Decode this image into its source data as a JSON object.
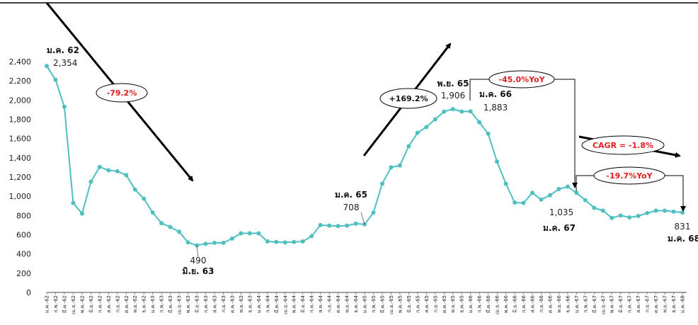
{
  "chart_data": {
    "type": "line",
    "title": "",
    "xlabel": "",
    "ylabel": "",
    "ylim": [
      0,
      2400
    ],
    "yticks": [
      0,
      200,
      400,
      600,
      800,
      1000,
      1200,
      1400,
      1600,
      1800,
      2000,
      2200,
      2400
    ],
    "ytick_labels": [
      "0",
      "200",
      "400",
      "600",
      "800",
      "1,000",
      "1,200",
      "1,400",
      "1,600",
      "1,800",
      "2,000",
      "2,200",
      "2,400"
    ],
    "grid": false,
    "legend": "none",
    "x": [
      "ม.ค.-62",
      "ก.พ.-62",
      "มี.ค.-62",
      "เม.ย.-62",
      "พ.ค.-62",
      "มิ.ย.-62",
      "ก.ค.-62",
      "ส.ค.-62",
      "ก.ย.-62",
      "ต.ค.-62",
      "พ.ย.-62",
      "ธ.ค.-62",
      "ม.ค.-63",
      "ก.พ.-63",
      "มี.ค.-63",
      "เม.ย.-63",
      "พ.ค.-63",
      "มิ.ย.-63",
      "ก.ค.-63",
      "ส.ค.-63",
      "ก.ย.-63",
      "ต.ค.-63",
      "พ.ย.-63",
      "ธ.ค.-63",
      "ม.ค.-64",
      "ก.พ.-64",
      "มี.ค.-64",
      "เม.ย.-64",
      "พ.ค.-64",
      "มิ.ย.-64",
      "ก.ค.-64",
      "ส.ค.-64",
      "ก.ย.-64",
      "ต.ค.-64",
      "พ.ย.-64",
      "ธ.ค.-64",
      "ม.ค.-65",
      "ก.พ.-65",
      "มี.ค.-65",
      "เม.ย.-65",
      "พ.ค.-65",
      "มิ.ย.-65",
      "ก.ค.-65",
      "ส.ค.-65",
      "ก.ย.-65",
      "ต.ค.-65",
      "พ.ย.-65",
      "ธ.ค.-65",
      "ม.ค.-66",
      "ก.พ.-66",
      "มี.ค.-66",
      "เม.ย.-66",
      "พ.ค.-66",
      "มิ.ย.-66",
      "ก.ค.-66",
      "ส.ค.-66",
      "ก.ย.-66",
      "ต.ค.-66",
      "พ.ย.-66",
      "ธ.ค.-66",
      "ม.ค.-67",
      "ก.พ.-67",
      "มี.ค.-67",
      "เม.ย.-67",
      "พ.ค.-67",
      "มิ.ย.-67",
      "ก.ค.-67",
      "ส.ค.-67",
      "ก.ย.-67",
      "ต.ค.-67",
      "พ.ย.-67",
      "ธ.ค.-67",
      "ม.ค.-68"
    ],
    "series": [
      {
        "color": "#4fbfbf",
        "values": [
          2354,
          2210,
          1930,
          930,
          820,
          1150,
          1305,
          1270,
          1260,
          1220,
          1070,
          975,
          830,
          720,
          680,
          630,
          520,
          490,
          505,
          515,
          515,
          560,
          615,
          615,
          615,
          530,
          525,
          520,
          525,
          530,
          585,
          700,
          695,
          690,
          695,
          715,
          708,
          830,
          1130,
          1300,
          1320,
          1520,
          1660,
          1720,
          1800,
          1880,
          1906,
          1880,
          1883,
          1770,
          1650,
          1360,
          1130,
          935,
          930,
          1035,
          965,
          1010,
          1075,
          1100,
          1035,
          960,
          880,
          850,
          775,
          800,
          780,
          795,
          825,
          850,
          850,
          840,
          831
        ]
      }
    ],
    "annotations": [
      {
        "index": 0,
        "date": "ม.ค. 62",
        "value": "2,354"
      },
      {
        "index": 17,
        "date": "มิ.ย. 63",
        "value": "490"
      },
      {
        "index": 36,
        "date": "ม.ค. 65",
        "value": "708"
      },
      {
        "index": 46,
        "date": "พ.ย. 65",
        "value": "1,906"
      },
      {
        "index": 48,
        "date": "ม.ค. 66",
        "value": "1,883"
      },
      {
        "index": 60,
        "date": "ม.ค. 67",
        "value": "1,035"
      },
      {
        "index": 72,
        "date": "ม.ค. 68",
        "value": "831"
      }
    ],
    "callouts": [
      {
        "text": "-79.2%",
        "color": "#e02020"
      },
      {
        "text": "+169.2%",
        "color": "#111111"
      },
      {
        "text": "-45.0%YoY",
        "color": "#e02020"
      },
      {
        "text": "CAGR = -1.8%",
        "color": "#e02020"
      },
      {
        "text": "-19.7%YoY",
        "color": "#e02020"
      }
    ]
  }
}
